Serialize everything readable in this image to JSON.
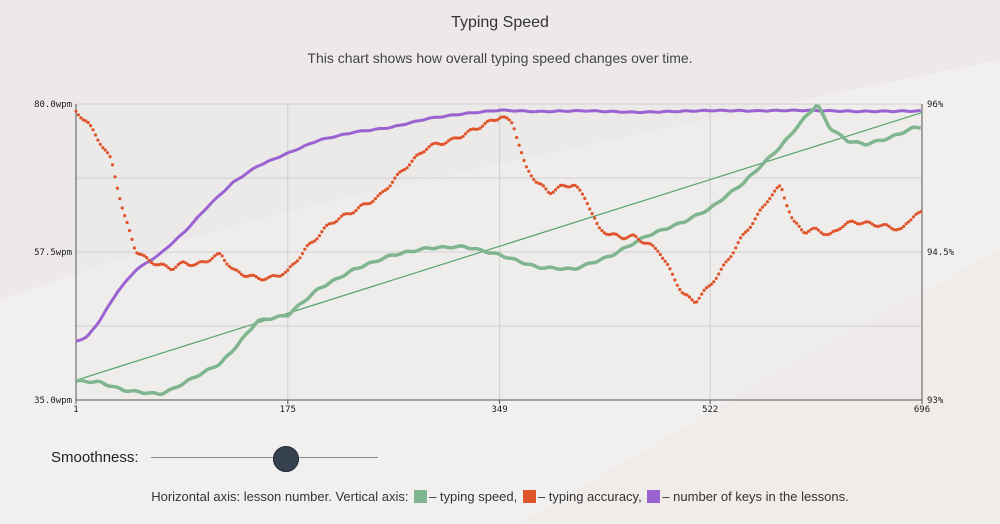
{
  "header": {
    "title": "Typing Speed",
    "subtitle": "This chart shows how overall typing speed changes over time."
  },
  "controls": {
    "smoothness_label": "Smoothness:",
    "smoothness_value": 0.59
  },
  "legend": {
    "prefix": "Horizontal axis: lesson number. Vertical axis:",
    "speed": "– typing speed,",
    "accuracy": "– typing accuracy,",
    "keys": "– number of keys in the lessons."
  },
  "colors": {
    "speed": "#7fb58f",
    "accuracy": "#e0542c",
    "keys": "#9b63d1",
    "trend": "#5aa36a"
  },
  "chart_data": {
    "type": "line",
    "x_ticks": [
      "1",
      "175",
      "349",
      "522",
      "696"
    ],
    "xlim": [
      1,
      696
    ],
    "y_left_ticks": [
      "35.0wpm",
      "57.5wpm",
      "80.0wpm"
    ],
    "ylim_left": [
      35,
      80
    ],
    "y_right_ticks": [
      "93%",
      "94.5%",
      "96%"
    ],
    "ylim_right": [
      93,
      96
    ],
    "grid": true,
    "series": [
      {
        "key": "keys",
        "axis": "left",
        "x": [
          1,
          10,
          20,
          35,
          50,
          70,
          90,
          110,
          130,
          150,
          175,
          200,
          230,
          260,
          290,
          320,
          349,
          380,
          420,
          460,
          522,
          560,
          600,
          640,
          696
        ],
        "y": [
          44,
          44.6,
          47,
          51.5,
          54.8,
          57.2,
          60.5,
          64.5,
          68,
          70.5,
          72.5,
          74.5,
          75.8,
          76.5,
          77.8,
          78.5,
          79.0,
          78.8,
          79.0,
          78.8,
          79.0,
          78.9,
          79.0,
          78.9,
          79.0
        ]
      },
      {
        "key": "speed",
        "axis": "left",
        "x": [
          1,
          20,
          40,
          60,
          70,
          80,
          100,
          120,
          130,
          150,
          175,
          200,
          230,
          260,
          290,
          320,
          349,
          380,
          410,
          440,
          470,
          500,
          522,
          550,
          580,
          600,
          610,
          620,
          635,
          650,
          670,
          690,
          696
        ],
        "y": [
          38.0,
          37.8,
          36.5,
          36.0,
          35.8,
          36.5,
          38.5,
          40.5,
          42.5,
          47.0,
          48.0,
          52.0,
          55.0,
          57.0,
          58.0,
          58.2,
          57.0,
          55.2,
          55.0,
          57.0,
          60.0,
          62.0,
          64.0,
          68.0,
          73.5,
          78.0,
          80.0,
          76.5,
          74.5,
          74.0,
          75.0,
          76.5,
          76.5
        ]
      },
      {
        "key": "accuracy",
        "axis": "right",
        "x": [
          1,
          10,
          20,
          30,
          40,
          50,
          60,
          70,
          80,
          90,
          100,
          110,
          120,
          130,
          140,
          150,
          160,
          175,
          190,
          210,
          230,
          250,
          270,
          290,
          310,
          330,
          350,
          360,
          370,
          380,
          390,
          400,
          410,
          420,
          430,
          440,
          450,
          460,
          480,
          500,
          510,
          520,
          530,
          540,
          550,
          560,
          570,
          580,
          590,
          600,
          610,
          620,
          630,
          640,
          660,
          680,
          690,
          696
        ],
        "y": [
          95.92,
          95.82,
          95.62,
          95.42,
          94.88,
          94.5,
          94.4,
          94.35,
          94.32,
          94.38,
          94.36,
          94.42,
          94.48,
          94.32,
          94.28,
          94.25,
          94.25,
          94.32,
          94.55,
          94.8,
          94.92,
          95.05,
          95.32,
          95.55,
          95.62,
          95.75,
          95.88,
          95.82,
          95.38,
          95.22,
          95.12,
          95.18,
          95.2,
          95.05,
          94.75,
          94.68,
          94.65,
          94.65,
          94.5,
          94.05,
          93.98,
          94.12,
          94.28,
          94.48,
          94.68,
          94.85,
          95.05,
          95.18,
          94.82,
          94.72,
          94.75,
          94.68,
          94.78,
          94.82,
          94.78,
          94.72,
          94.88,
          94.88
        ]
      },
      {
        "key": "trend",
        "axis": "left",
        "x": [
          1,
          696
        ],
        "y": [
          38.0,
          78.7
        ]
      }
    ]
  }
}
